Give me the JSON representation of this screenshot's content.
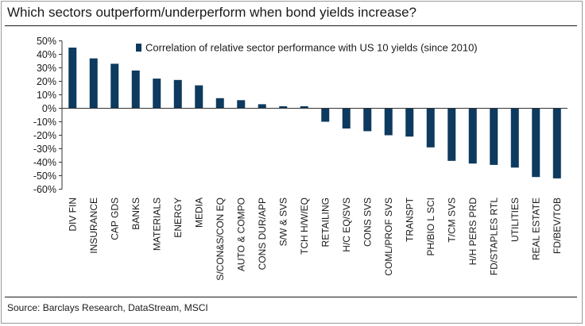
{
  "title": "Which sectors outperform/underperform when bond yields increase?",
  "source": "Source: Barclays Research, DataStream, MSCI",
  "colors": {
    "bar": "#0d3a5e",
    "axis": "#333333",
    "text": "#1a1a1a"
  },
  "chart_data": {
    "type": "bar",
    "title": "Which sectors outperform/underperform when bond yields increase?",
    "xlabel": "",
    "ylabel": "",
    "ylim": [
      -60,
      50
    ],
    "yticks": [
      50,
      40,
      30,
      20,
      10,
      0,
      -10,
      -20,
      -30,
      -40,
      -50,
      -60
    ],
    "ytick_labels": [
      "50%",
      "40%",
      "30%",
      "20%",
      "10%",
      "0%",
      "-10%",
      "-20%",
      "-30%",
      "-40%",
      "-50%",
      "-60%"
    ],
    "grid": false,
    "legend": "top-right",
    "categories": [
      "DIV FIN",
      "INSURANCE",
      "CAP GDS",
      "BANKS",
      "MATERIALS",
      "ENERGY",
      "MEDIA",
      "S/CON&S/CON EQ",
      "AUTO & COMPO",
      "CONS DUR/APP",
      "S/W & SVS",
      "TCH H/W/EQ",
      "RETAILING",
      "H/C EQ/SVS",
      "CONS SVS",
      "COML/PROF SVS",
      "TRANSPT",
      "PH/BIO L SCI",
      "T/CM SVS",
      "H/H PERS PRD",
      "FD/STAPLES RTL",
      "UTILITIES",
      "REAL ESTATE",
      "FD/BEV/TOB"
    ],
    "series": [
      {
        "name": "Correlation of relative sector performance with US 10 yields (since 2010)",
        "values": [
          45,
          37,
          33,
          28,
          22,
          21,
          17,
          7.5,
          6,
          3,
          1.5,
          1.5,
          -10,
          -15,
          -17,
          -20,
          -21,
          -29,
          -39,
          -41,
          -42,
          -44,
          -51,
          -52
        ]
      }
    ]
  }
}
